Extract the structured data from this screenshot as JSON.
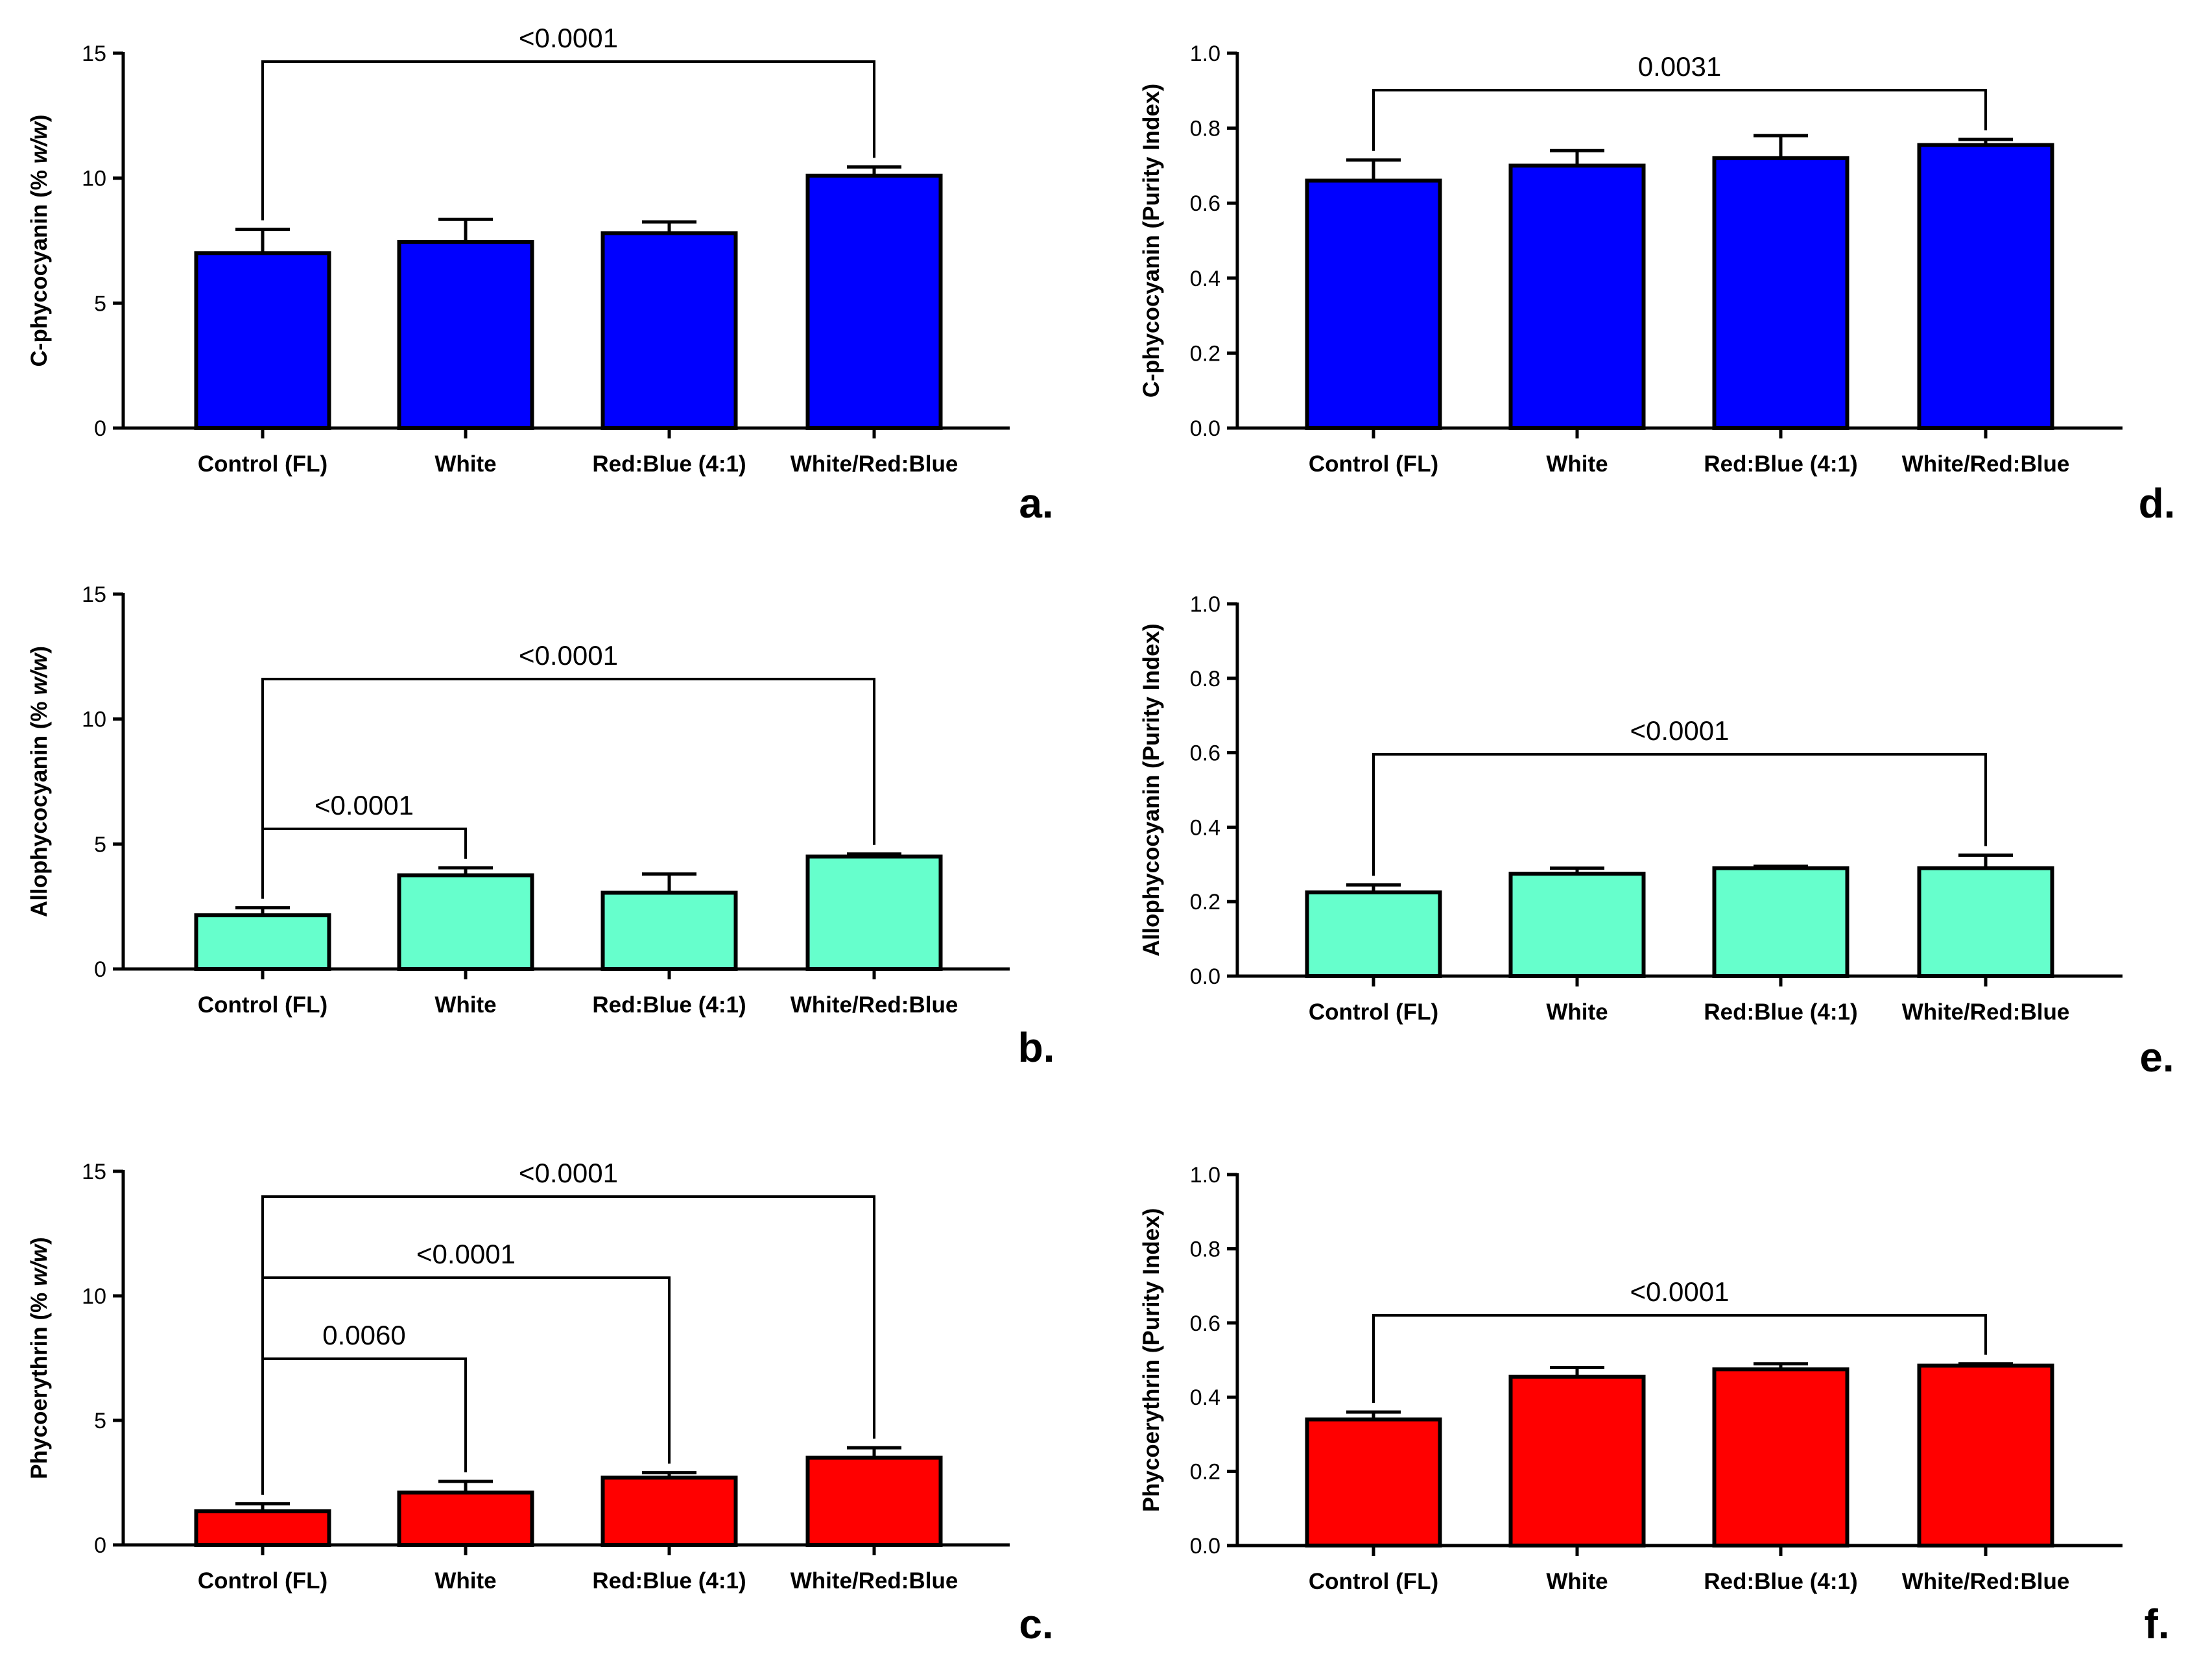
{
  "chart_data": [
    {
      "panel": "a.",
      "type": "bar",
      "ylabel": "C-phycocyanin (% w/w)",
      "ylabel_plain": "C-phycocyanin (% ",
      "ylabel_italic": "w/w",
      "ylabel_close": ")",
      "ylim": [
        0,
        15
      ],
      "yticks": [
        0,
        5,
        10,
        15
      ],
      "categories": [
        "Control (FL)",
        "White",
        "Red:Blue (4:1)",
        "White/Red:Blue"
      ],
      "values": [
        7.0,
        7.45,
        7.8,
        10.1
      ],
      "errors": [
        0.95,
        0.9,
        0.45,
        0.35
      ],
      "color": "#0000ff",
      "comparisons": [
        {
          "from": 0,
          "to": 3,
          "label": "<0.0001"
        }
      ]
    },
    {
      "panel": "b.",
      "type": "bar",
      "ylabel": "Allophycocyanin (% w/w)",
      "ylabel_plain": "Allophycocyanin (% ",
      "ylabel_italic": "w/w",
      "ylabel_close": ")",
      "ylim": [
        0,
        15
      ],
      "yticks": [
        0,
        5,
        10,
        15
      ],
      "categories": [
        "Control (FL)",
        "White",
        "Red:Blue (4:1)",
        "White/Red:Blue"
      ],
      "values": [
        2.15,
        3.75,
        3.05,
        4.5
      ],
      "errors": [
        0.3,
        0.3,
        0.75,
        0.1
      ],
      "color": "#66ffcc",
      "comparisons": [
        {
          "from": 0,
          "to": 1,
          "label": "<0.0001"
        },
        {
          "from": 0,
          "to": 3,
          "label": "<0.0001"
        }
      ]
    },
    {
      "panel": "c.",
      "type": "bar",
      "ylabel": "Phycoerythrin (% w/w)",
      "ylabel_plain": "Phycoerythrin (% ",
      "ylabel_italic": "w/w",
      "ylabel_close": ")",
      "ylim": [
        0,
        15
      ],
      "yticks": [
        0,
        5,
        10,
        15
      ],
      "categories": [
        "Control (FL)",
        "White",
        "Red:Blue (4:1)",
        "White/Red:Blue"
      ],
      "values": [
        1.35,
        2.1,
        2.7,
        3.5
      ],
      "errors": [
        0.3,
        0.45,
        0.2,
        0.4
      ],
      "color": "#ff0000",
      "comparisons": [
        {
          "from": 0,
          "to": 1,
          "label": "0.0060"
        },
        {
          "from": 0,
          "to": 2,
          "label": "<0.0001"
        },
        {
          "from": 0,
          "to": 3,
          "label": "<0.0001"
        }
      ]
    },
    {
      "panel": "d.",
      "type": "bar",
      "ylabel": "C-phycocyanin (Purity Index)",
      "ylim": [
        0,
        1.0
      ],
      "yticks": [
        "0.0",
        "0.2",
        "0.4",
        "0.6",
        "0.8",
        "1.0"
      ],
      "categories": [
        "Control (FL)",
        "White",
        "Red:Blue (4:1)",
        "White/Red:Blue"
      ],
      "values": [
        0.66,
        0.7,
        0.72,
        0.755
      ],
      "errors": [
        0.055,
        0.04,
        0.06,
        0.015
      ],
      "color": "#0000ff",
      "comparisons": [
        {
          "from": 0,
          "to": 3,
          "label": "0.0031"
        }
      ]
    },
    {
      "panel": "e.",
      "type": "bar",
      "ylabel": "Allophycocyanin (Purity Index)",
      "ylim": [
        0,
        1.0
      ],
      "yticks": [
        "0.0",
        "0.2",
        "0.4",
        "0.6",
        "0.8",
        "1.0"
      ],
      "categories": [
        "Control (FL)",
        "White",
        "Red:Blue (4:1)",
        "White/Red:Blue"
      ],
      "values": [
        0.225,
        0.275,
        0.29,
        0.29
      ],
      "errors": [
        0.02,
        0.015,
        0.005,
        0.035
      ],
      "color": "#66ffcc",
      "comparisons": [
        {
          "from": 0,
          "to": 3,
          "label": "<0.0001"
        }
      ]
    },
    {
      "panel": "f.",
      "type": "bar",
      "ylabel": "Phycoerythrin (Purity Index)",
      "ylim": [
        0,
        1.0
      ],
      "yticks": [
        "0.0",
        "0.2",
        "0.4",
        "0.6",
        "0.8",
        "1.0"
      ],
      "categories": [
        "Control (FL)",
        "White",
        "Red:Blue (4:1)",
        "White/Red:Blue"
      ],
      "values": [
        0.34,
        0.455,
        0.475,
        0.485
      ],
      "errors": [
        0.02,
        0.025,
        0.015,
        0.005
      ],
      "color": "#ff0000",
      "comparisons": [
        {
          "from": 0,
          "to": 3,
          "label": "<0.0001"
        }
      ]
    }
  ]
}
